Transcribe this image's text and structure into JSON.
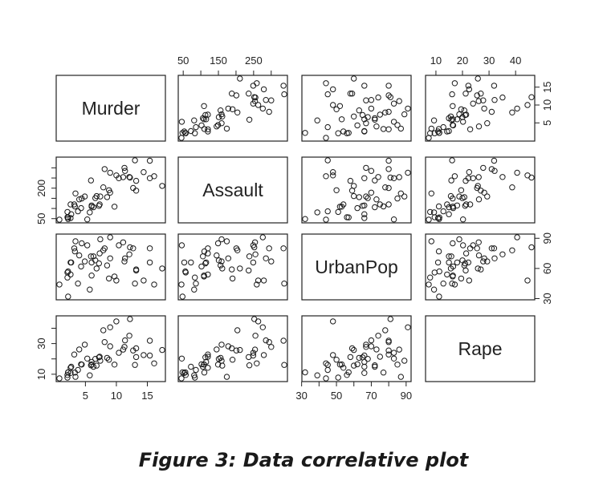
{
  "caption": "Figure 3: Data correlative plot",
  "chart_data": {
    "type": "scatter",
    "layout": "pairs-matrix",
    "variables": [
      "Murder",
      "Assault",
      "UrbanPop",
      "Rape"
    ],
    "ranges": {
      "Murder": [
        0.8,
        17.4
      ],
      "Assault": [
        45,
        337
      ],
      "UrbanPop": [
        32,
        91
      ],
      "Rape": [
        7.3,
        46
      ]
    },
    "ticks": {
      "Murder": [
        "5",
        "10",
        "15"
      ],
      "Assault": [
        "50",
        "150",
        "250"
      ],
      "Assault_side": [
        "50",
        "200"
      ],
      "UrbanPop": [
        "30",
        "50",
        "70",
        "90"
      ],
      "UrbanPop_side": [
        "30",
        "60",
        "90"
      ],
      "Rape": [
        "10",
        "20",
        "30",
        "40"
      ],
      "Rape_side": [
        "10",
        "30"
      ],
      "Murder_side": [
        "5",
        "10",
        "15"
      ]
    },
    "axis_placement": {
      "top": [
        "Assault",
        "Rape"
      ],
      "bottom": [
        "Murder",
        "UrbanPop"
      ],
      "left": [
        "Assault",
        "Rape"
      ],
      "right": [
        "Murder",
        "UrbanPop"
      ]
    },
    "observations": [
      [
        13.2,
        236,
        58,
        21.2
      ],
      [
        10.0,
        263,
        48,
        44.5
      ],
      [
        8.1,
        294,
        80,
        31.0
      ],
      [
        8.8,
        190,
        50,
        19.5
      ],
      [
        9.0,
        276,
        91,
        40.6
      ],
      [
        7.9,
        204,
        78,
        38.7
      ],
      [
        3.3,
        110,
        77,
        11.1
      ],
      [
        5.9,
        238,
        72,
        15.8
      ],
      [
        15.4,
        335,
        80,
        31.9
      ],
      [
        17.4,
        211,
        60,
        25.8
      ],
      [
        5.3,
        46,
        83,
        20.2
      ],
      [
        2.6,
        120,
        54,
        14.2
      ],
      [
        10.4,
        249,
        83,
        24.0
      ],
      [
        7.2,
        113,
        65,
        21.0
      ],
      [
        2.2,
        56,
        57,
        11.3
      ],
      [
        6.0,
        115,
        66,
        18.0
      ],
      [
        9.7,
        109,
        52,
        16.3
      ],
      [
        15.4,
        249,
        66,
        22.2
      ],
      [
        2.1,
        83,
        51,
        7.8
      ],
      [
        11.3,
        300,
        67,
        27.8
      ],
      [
        4.4,
        149,
        85,
        16.3
      ],
      [
        12.1,
        255,
        74,
        35.1
      ],
      [
        2.7,
        72,
        66,
        14.9
      ],
      [
        16.1,
        259,
        44,
        17.1
      ],
      [
        9.0,
        178,
        70,
        28.2
      ],
      [
        6.0,
        109,
        53,
        16.4
      ],
      [
        4.3,
        102,
        62,
        16.5
      ],
      [
        12.2,
        252,
        81,
        46.0
      ],
      [
        2.1,
        57,
        56,
        9.5
      ],
      [
        7.4,
        159,
        89,
        18.8
      ],
      [
        11.4,
        285,
        70,
        32.1
      ],
      [
        11.1,
        254,
        86,
        26.1
      ],
      [
        13.0,
        337,
        45,
        16.1
      ],
      [
        0.8,
        45,
        44,
        7.3
      ],
      [
        7.3,
        120,
        75,
        21.4
      ],
      [
        6.6,
        151,
        68,
        20.0
      ],
      [
        4.9,
        159,
        67,
        29.3
      ],
      [
        6.3,
        106,
        72,
        14.9
      ],
      [
        3.4,
        174,
        87,
        8.3
      ],
      [
        14.4,
        279,
        48,
        22.5
      ],
      [
        3.8,
        86,
        45,
        12.8
      ],
      [
        13.2,
        188,
        59,
        26.9
      ],
      [
        12.7,
        201,
        80,
        25.5
      ],
      [
        3.2,
        120,
        80,
        22.9
      ],
      [
        2.2,
        48,
        32,
        11.2
      ],
      [
        8.5,
        156,
        63,
        20.7
      ],
      [
        4.0,
        145,
        73,
        26.2
      ],
      [
        5.7,
        81,
        39,
        9.3
      ],
      [
        2.6,
        53,
        66,
        10.8
      ],
      [
        6.8,
        161,
        60,
        15.6
      ]
    ]
  }
}
